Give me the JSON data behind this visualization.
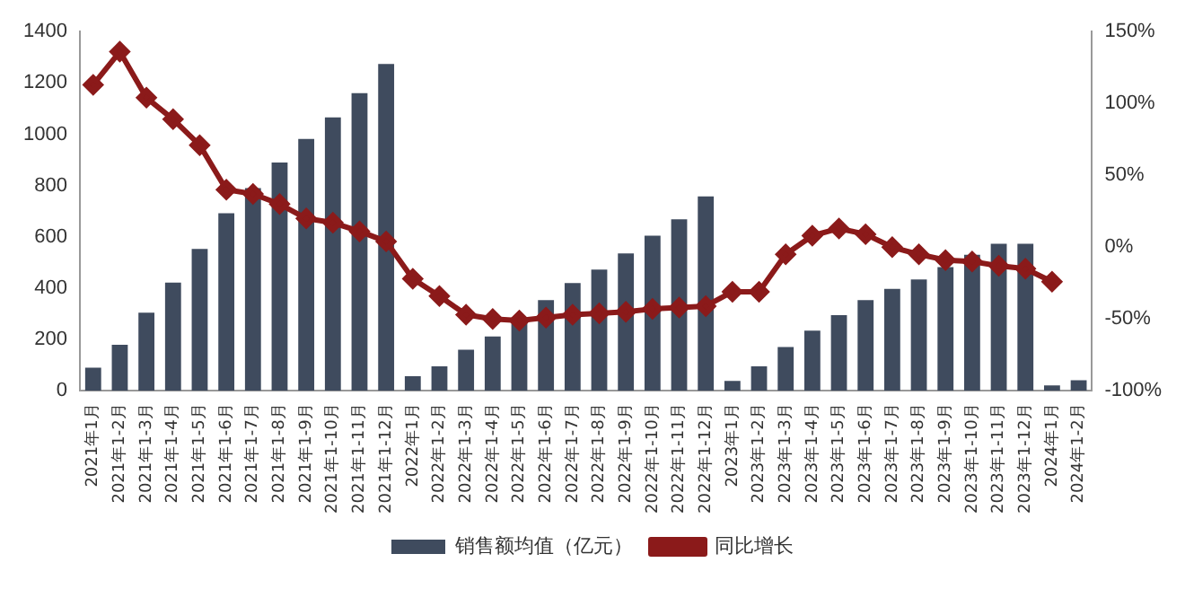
{
  "chart_data": {
    "type": "bar",
    "categories": [
      "2021年1月",
      "2021年1-2月",
      "2021年1-3月",
      "2021年1-4月",
      "2021年1-5月",
      "2021年1-6月",
      "2021年1-7月",
      "2021年1-8月",
      "2021年1-9月",
      "2021年1-10月",
      "2021年1-11月",
      "2021年1-12月",
      "2022年1月",
      "2022年1-2月",
      "2022年1-3月",
      "2022年1-4月",
      "2022年1-5月",
      "2022年1-6月",
      "2022年1-7月",
      "2022年1-8月",
      "2022年1-9月",
      "2022年1-10月",
      "2022年1-11月",
      "2022年1-12月",
      "2023年1月",
      "2023年1-2月",
      "2023年1-3月",
      "2023年1-4月",
      "2023年1-5月",
      "2023年1-6月",
      "2023年1-7月",
      "2023年1-8月",
      "2023年1-9月",
      "2023年1-10月",
      "2023年1-11月",
      "2023年1-12月",
      "2024年1月",
      "2024年1-2月"
    ],
    "series": [
      {
        "name": "销售额均值（亿元）",
        "color": "#3f4b5e",
        "values": [
          90,
          180,
          305,
          422,
          553,
          692,
          790,
          890,
          982,
          1066,
          1160,
          1274,
          57,
          96,
          160,
          212,
          280,
          354,
          420,
          473,
          536,
          605,
          669,
          758,
          39,
          96,
          171,
          235,
          295,
          354,
          397,
          434,
          482,
          530,
          573,
          573,
          21,
          41
        ]
      },
      {
        "name": "同比增长",
        "type": "line",
        "axis": "y2",
        "color": "#8b1a1a",
        "marker": "diamond",
        "values": [
          113,
          136,
          104,
          89,
          71,
          40,
          37,
          30,
          20,
          17,
          11,
          4,
          -22,
          -34,
          -47,
          -50,
          -51,
          -49,
          -47,
          -46,
          -45,
          -43,
          -42,
          -41,
          -31,
          -31,
          -5,
          8,
          13,
          9,
          0,
          -5,
          -9,
          -10,
          -13,
          -15,
          -24,
          null
        ]
      }
    ],
    "ylim": [
      0,
      1400
    ],
    "yticks": [
      0,
      200,
      400,
      600,
      800,
      1000,
      1200,
      1400
    ],
    "y2lim": [
      -100,
      150
    ],
    "y2ticks": [
      {
        "value": -100,
        "label": "-100%"
      },
      {
        "value": -50,
        "label": "-50%"
      },
      {
        "value": 0,
        "label": "0%"
      },
      {
        "value": 50,
        "label": "50%"
      },
      {
        "value": 100,
        "label": "100%"
      },
      {
        "value": 150,
        "label": "150%"
      }
    ],
    "grid": false,
    "legend": "bottom"
  }
}
